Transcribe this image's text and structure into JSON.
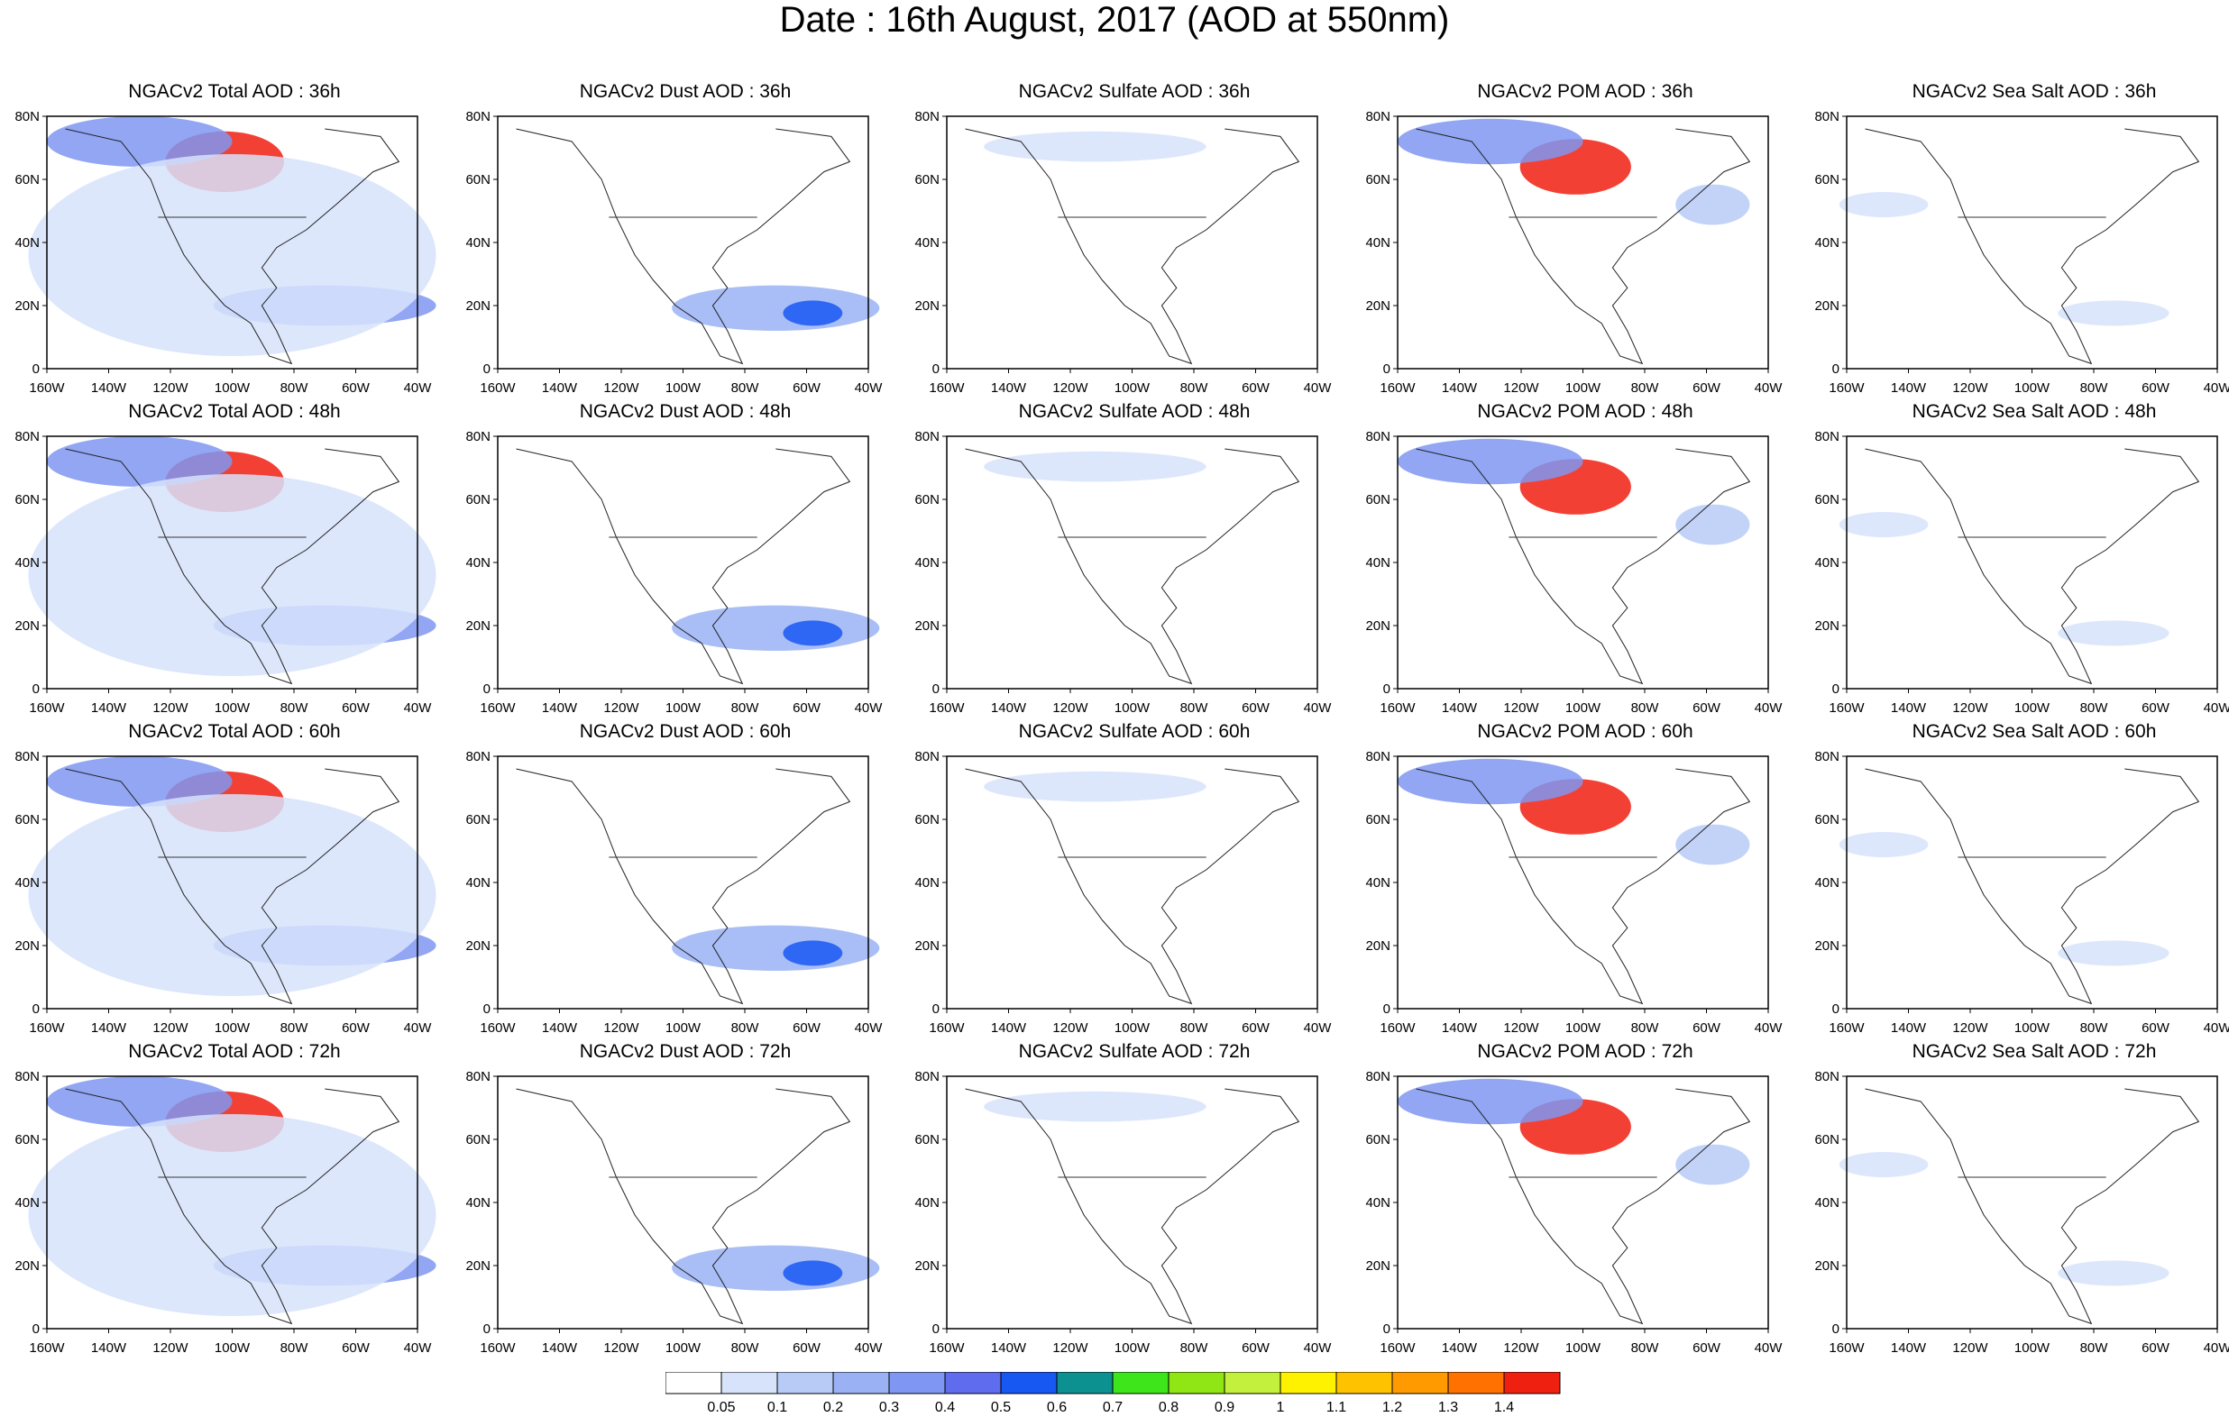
{
  "title": "Date : 16th August, 2017 (AOD at 550nm)",
  "map": {
    "lat_labels": [
      "80N",
      "60N",
      "40N",
      "20N",
      "0"
    ],
    "lon_labels": [
      "160W",
      "140W",
      "120W",
      "100W",
      "80W",
      "60W",
      "40W"
    ]
  },
  "species": [
    {
      "id": "total",
      "title_prefix": "NGACv2 Total AOD : "
    },
    {
      "id": "dust",
      "title_prefix": "NGACv2 Dust AOD : "
    },
    {
      "id": "sulfate",
      "title_prefix": "NGACv2 Sulfate AOD : "
    },
    {
      "id": "pom",
      "title_prefix": "NGACv2 POM AOD : "
    },
    {
      "id": "seasalt",
      "title_prefix": "NGACv2 Sea Salt AOD : "
    }
  ],
  "forecast_hours": [
    "36h",
    "48h",
    "60h",
    "72h"
  ],
  "title_overrides": {
    "seasalt_72h": "NGACv2 Sea Salt  AOD : 72h"
  },
  "colorbar": {
    "labels": [
      "0.05",
      "0.1",
      "0.2",
      "0.3",
      "0.4",
      "0.5",
      "0.6",
      "0.7",
      "0.8",
      "0.9",
      "1",
      "1.1",
      "1.2",
      "1.3",
      "1.4"
    ],
    "colors": [
      "#ffffff",
      "#d7e3fb",
      "#b8cbf6",
      "#9ab2f4",
      "#7f97f2",
      "#5f6cee",
      "#1758f3",
      "#0d9090",
      "#3de51a",
      "#90e514",
      "#c3f03c",
      "#fff200",
      "#ffc200",
      "#ff9b00",
      "#ff7100",
      "#f02010"
    ]
  }
}
